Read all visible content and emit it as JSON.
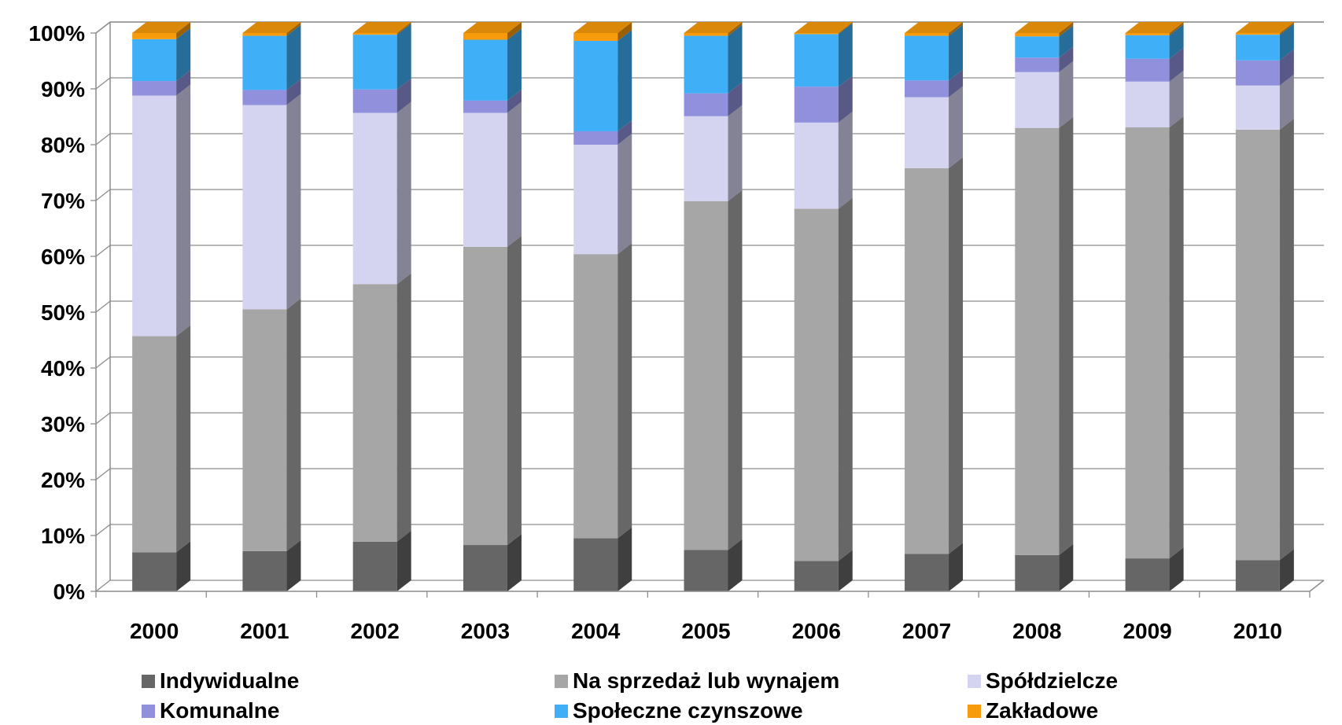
{
  "chart_data": {
    "type": "bar",
    "stacked": true,
    "percent": true,
    "three_d": true,
    "categories": [
      "2000",
      "2001",
      "2002",
      "2003",
      "2004",
      "2005",
      "2006",
      "2007",
      "2008",
      "2009",
      "2010"
    ],
    "series": [
      {
        "name": "Indywidualne",
        "color": "#666666",
        "values": [
          7.0,
          7.2,
          8.9,
          8.3,
          9.5,
          7.4,
          5.5,
          6.7,
          6.5,
          5.9,
          5.6
        ]
      },
      {
        "name": "Na sprzedaż lub wynajem",
        "color": "#a6a6a6",
        "values": [
          38.7,
          43.3,
          46.1,
          53.4,
          50.9,
          62.5,
          63.7,
          69.1,
          76.5,
          77.2,
          77.1
        ]
      },
      {
        "name": "Spółdzielcze",
        "color": "#d4d4f0",
        "values": [
          43.1,
          36.6,
          30.7,
          24.0,
          19.6,
          15.2,
          15.6,
          12.7,
          10.0,
          8.2,
          7.9
        ]
      },
      {
        "name": "Komunalne",
        "color": "#9090dc",
        "values": [
          2.6,
          2.7,
          4.2,
          2.2,
          2.4,
          4.1,
          6.5,
          3.0,
          2.6,
          4.1,
          4.5
        ]
      },
      {
        "name": "Społeczne czynszowe",
        "color": "#3fb0f8",
        "values": [
          7.5,
          9.7,
          9.8,
          10.9,
          16.2,
          10.3,
          9.5,
          8.0,
          3.8,
          4.2,
          4.6
        ]
      },
      {
        "name": "Zakładowe",
        "color": "#f79a0b",
        "values": [
          1.1,
          0.5,
          0.3,
          1.2,
          1.4,
          0.5,
          0.2,
          0.5,
          0.6,
          0.4,
          0.3
        ]
      }
    ],
    "yticks": [
      "0%",
      "10%",
      "20%",
      "30%",
      "40%",
      "50%",
      "60%",
      "70%",
      "80%",
      "90%",
      "100%"
    ],
    "ylim": [
      0,
      100
    ],
    "grid": true,
    "legend_position": "bottom"
  }
}
